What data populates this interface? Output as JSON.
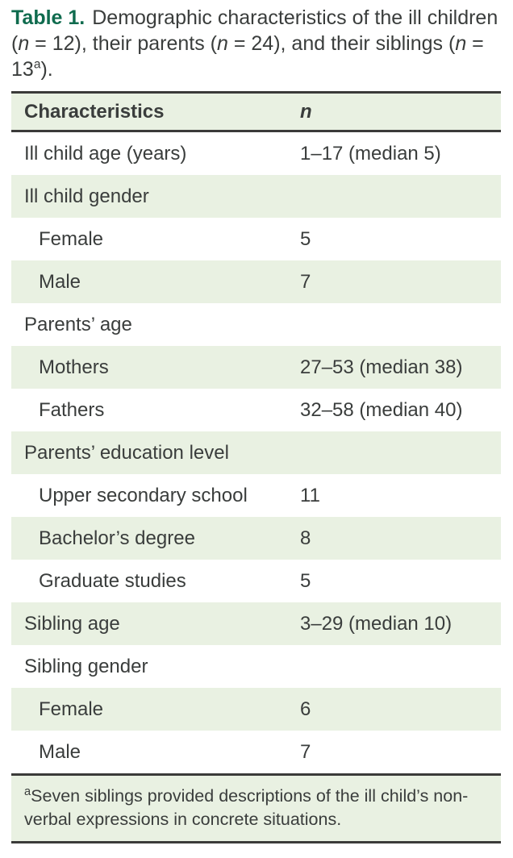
{
  "colors": {
    "accent_green": "#0f6b4e",
    "row_shade_green": "#e9f1e2",
    "rule_dark": "#3b3b39",
    "text": "#3a3d3c"
  },
  "title": {
    "label": "Table 1.",
    "t1": "Demographic characteristics of the ill children (",
    "n": "n",
    "t2": " = 12), their parents (",
    "t3": " = 24), and their siblings (",
    "t4": " = 13",
    "sup": "a",
    "t5": ")."
  },
  "table": {
    "header": {
      "characteristics": "Characteristics",
      "n": "n"
    },
    "rows": [
      {
        "label": "Ill child age (years)",
        "value": "1–17 (median 5)",
        "indent": false,
        "shaded": false
      },
      {
        "label": "Ill child gender",
        "value": "",
        "indent": false,
        "shaded": true
      },
      {
        "label": "Female",
        "value": "5",
        "indent": true,
        "shaded": false
      },
      {
        "label": "Male",
        "value": "7",
        "indent": true,
        "shaded": true
      },
      {
        "label": "Parents’ age",
        "value": "",
        "indent": false,
        "shaded": false
      },
      {
        "label": "Mothers",
        "value": "27–53 (median 38)",
        "indent": true,
        "shaded": true
      },
      {
        "label": "Fathers",
        "value": "32–58 (median 40)",
        "indent": true,
        "shaded": false
      },
      {
        "label": "Parents’ education level",
        "value": "",
        "indent": false,
        "shaded": true
      },
      {
        "label": "Upper secondary school",
        "value": "11",
        "indent": true,
        "shaded": false
      },
      {
        "label": "Bachelor’s degree",
        "value": "8",
        "indent": true,
        "shaded": true
      },
      {
        "label": "Graduate studies",
        "value": "5",
        "indent": true,
        "shaded": false
      },
      {
        "label": "Sibling age",
        "value": "3–29 (median 10)",
        "indent": false,
        "shaded": true
      },
      {
        "label": "Sibling gender",
        "value": "",
        "indent": false,
        "shaded": false
      },
      {
        "label": "Female",
        "value": "6",
        "indent": true,
        "shaded": true
      },
      {
        "label": "Male",
        "value": "7",
        "indent": true,
        "shaded": false
      }
    ]
  },
  "footnote": {
    "sup": "a",
    "text": "Seven siblings provided descriptions of the ill child’s non-verbal expressions in concrete situations."
  }
}
